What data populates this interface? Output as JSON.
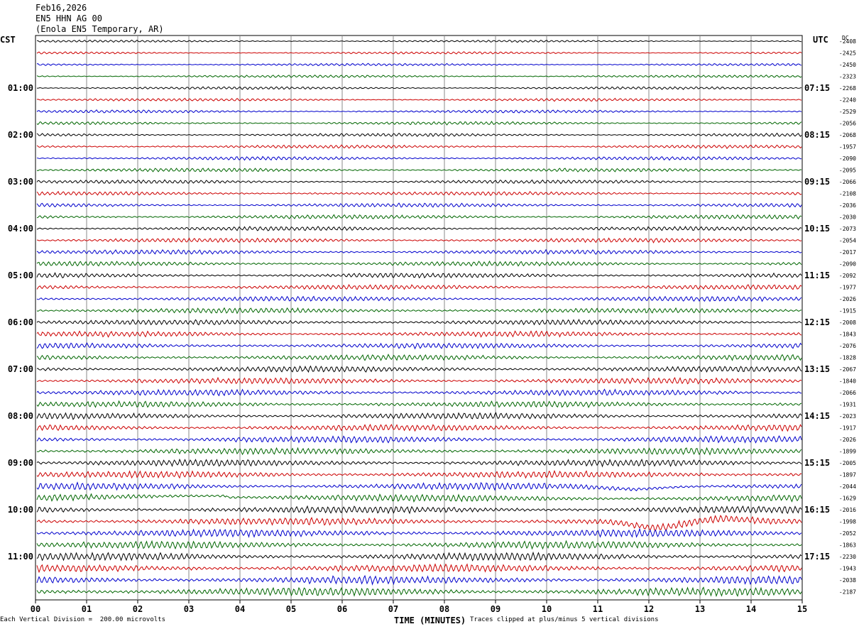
{
  "header": {
    "date": "Feb16,2026",
    "station": "EN5 HHN AG 00",
    "location": "(Enola EN5 Temporary, AR)"
  },
  "chart_data": {
    "type": "line",
    "left_timezone": "CST",
    "right_timezone": "UTC",
    "dc_label": "DC",
    "xlabel": "TIME (MINUTES)",
    "x_ticks": [
      "00",
      "01",
      "02",
      "03",
      "04",
      "05",
      "06",
      "07",
      "08",
      "09",
      "10",
      "11",
      "12",
      "13",
      "14",
      "15"
    ],
    "xlim": [
      0,
      15
    ],
    "left_hour_labels": [
      "01:00",
      "02:00",
      "03:00",
      "04:00",
      "05:00",
      "06:00",
      "07:00",
      "08:00",
      "09:00",
      "10:00",
      "11:00"
    ],
    "right_hour_labels": [
      "07:15",
      "08:15",
      "09:15",
      "10:15",
      "11:15",
      "12:15",
      "13:15",
      "14:15",
      "15:15",
      "16:15",
      "17:15"
    ],
    "trace_colors": [
      "#000000",
      "#cc0000",
      "#0000cc",
      "#006600"
    ],
    "trace_count": 48,
    "dc_offsets": [
      "-2408",
      "-2425",
      "-2450",
      "-2323",
      "-2268",
      "-2240",
      "-2529",
      "-2056",
      "-2068",
      "-1957",
      "-2090",
      "-2095",
      "-2066",
      "-2108",
      "-2036",
      "-2030",
      "-2073",
      "-2054",
      "-2017",
      "-2090",
      "-2092",
      "-1977",
      "-2026",
      "-1915",
      "-2008",
      "-1843",
      "-2076",
      "-1828",
      "-2067",
      "-1840",
      "-2066",
      "-1931",
      "-2023",
      "-1917",
      "-2026",
      "-1899",
      "-2005",
      "-1897",
      "-2044",
      "-1629",
      "-2016",
      "-1998",
      "-2052",
      "-1863",
      "-2230",
      "-1943",
      "-2038",
      "-2187"
    ]
  },
  "footer": {
    "scale_note": "Each Vertical Division =  200.00 microvolts",
    "clip_note": "Traces clipped at plus/minus 5 vertical divisions"
  }
}
